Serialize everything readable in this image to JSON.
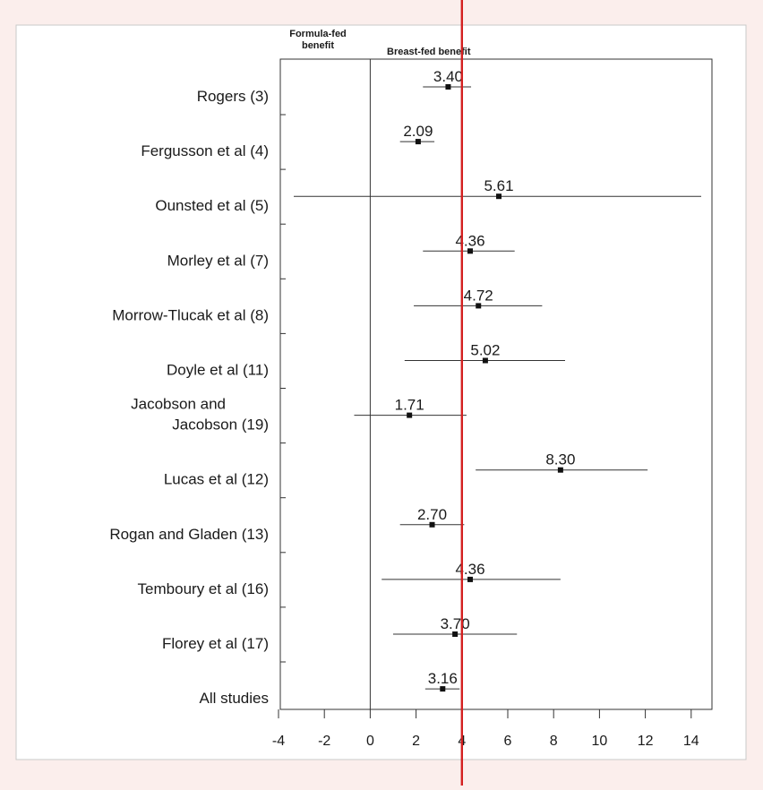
{
  "chart_data": {
    "type": "forest",
    "title": "",
    "header_left": [
      "Formula-fed",
      "benefit"
    ],
    "header_right": "Breast-fed benefit",
    "xlim": [
      -4,
      15
    ],
    "xticks": [
      -4,
      -2,
      0,
      2,
      4,
      6,
      8,
      10,
      12,
      14
    ],
    "reference_line": 4,
    "reference_color": "#d42020",
    "studies": [
      {
        "label": [
          "Rogers (3)"
        ],
        "estimate": 3.4,
        "display": "3.40",
        "ci": [
          2.3,
          4.4
        ]
      },
      {
        "label": [
          "Fergusson et al (4)"
        ],
        "estimate": 2.09,
        "display": "2.09",
        "ci": [
          1.3,
          2.8
        ]
      },
      {
        "label": [
          "Ounsted et al (5)"
        ],
        "estimate": 5.61,
        "display": "5.61",
        "ci": [
          -3.4,
          14.6
        ]
      },
      {
        "label": [
          "Morley et al (7)"
        ],
        "estimate": 4.36,
        "display": "4.36",
        "ci": [
          2.3,
          6.3
        ]
      },
      {
        "label": [
          "Morrow-Tlucak et al (8)"
        ],
        "estimate": 4.72,
        "display": "4.72",
        "ci": [
          1.9,
          7.5
        ]
      },
      {
        "label": [
          "Doyle et al (11)"
        ],
        "estimate": 5.02,
        "display": "5.02",
        "ci": [
          1.5,
          8.5
        ]
      },
      {
        "label": [
          "Jacobson and",
          "Jacobson (19)"
        ],
        "estimate": 1.71,
        "display": "1.71",
        "ci": [
          -0.7,
          4.2
        ]
      },
      {
        "label": [
          "Lucas et al (12)"
        ],
        "estimate": 8.3,
        "display": "8.30",
        "ci": [
          4.6,
          12.1
        ]
      },
      {
        "label": [
          "Rogan and Gladen (13)"
        ],
        "estimate": 2.7,
        "display": "2.70",
        "ci": [
          1.3,
          4.1
        ]
      },
      {
        "label": [
          "Temboury et al (16)"
        ],
        "estimate": 4.36,
        "display": "4.36",
        "ci": [
          0.5,
          8.3
        ]
      },
      {
        "label": [
          "Florey et al (17)"
        ],
        "estimate": 3.7,
        "display": "3.70",
        "ci": [
          1.0,
          6.4
        ]
      },
      {
        "label": [
          "All studies"
        ],
        "estimate": 3.16,
        "display": "3.16",
        "ci": [
          2.4,
          3.9
        ]
      }
    ]
  }
}
